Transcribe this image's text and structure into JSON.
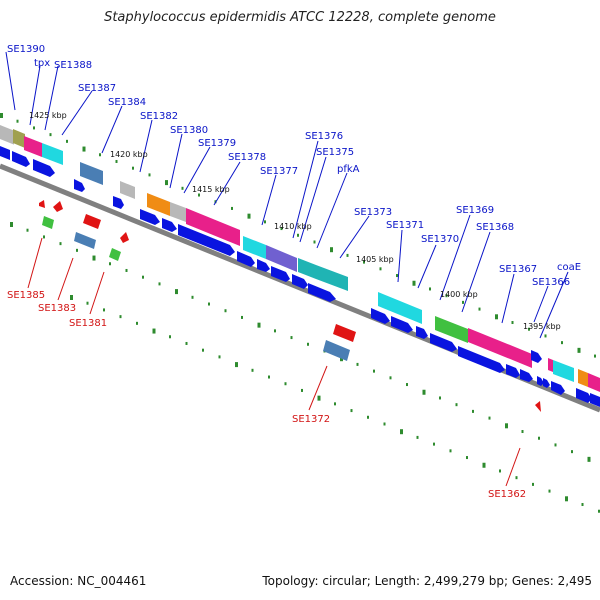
{
  "title": "Staphylococcus epidermidis ATCC 12228, complete genome",
  "footer": {
    "accession": "Accession: NC_004461",
    "topology": "Topology: circular; Length: 2,499,279 bp; Genes: 2,495"
  },
  "colors": {
    "backbone": "#808080",
    "cds_arrow": "#0a14e0",
    "label_blue": "#0a14c8",
    "label_red": "#d21414",
    "tick_green": "#2e8b2e",
    "magenta": "#e8208a",
    "cyan": "#20d8e0",
    "gray_feature": "#b8b8b8",
    "olive": "#a0a050",
    "orange": "#f08c14",
    "violet": "#7060d0",
    "teal": "#20b4b4",
    "green": "#40c040",
    "steelblue": "#4a7eb4",
    "red": "#e01414"
  },
  "scale_labels": [
    "1425 kbp",
    "1420 kbp",
    "1415 kbp",
    "1410 kbp",
    "1405 kbp",
    "1400 kbp",
    "1395 kbp"
  ],
  "top_labels": [
    "SE1390",
    "tpx",
    "SE1388",
    "SE1387",
    "SE1384",
    "SE1382",
    "SE1380",
    "SE1379",
    "SE1378",
    "SE1377",
    "SE1376",
    "SE1375",
    "pfkA",
    "SE1373",
    "SE1371",
    "SE1370",
    "SE1369",
    "SE1368",
    "SE1367",
    "SE1366",
    "coaE"
  ],
  "bottom_labels": [
    "SE1385",
    "SE1383",
    "SE1381",
    "SE1372",
    "SE1362"
  ]
}
